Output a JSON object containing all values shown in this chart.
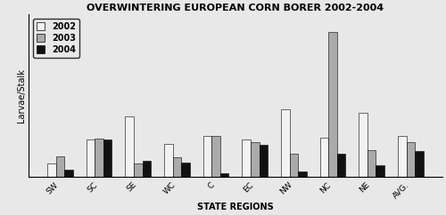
{
  "title": "OVERWINTERING EUROPEAN CORN BORER 2002-2004",
  "xlabel": "STATE REGIONS",
  "ylabel": "Larvae/Stalk",
  "categories": [
    "SW",
    "SC",
    "SE",
    "WC",
    "C",
    "EC",
    "NW",
    "NC",
    "NE",
    "AVG."
  ],
  "series": {
    "2002": [
      0.18,
      0.52,
      0.85,
      0.46,
      0.58,
      0.52,
      0.95,
      0.55,
      0.9,
      0.58
    ],
    "2003": [
      0.28,
      0.54,
      0.18,
      0.27,
      0.57,
      0.49,
      0.32,
      2.05,
      0.37,
      0.49
    ],
    "2004": [
      0.09,
      0.52,
      0.22,
      0.2,
      0.04,
      0.45,
      0.07,
      0.32,
      0.16,
      0.36
    ]
  },
  "colors": {
    "2002": "#f2f2f2",
    "2003": "#aaaaaa",
    "2004": "#111111"
  },
  "legend_labels": [
    "2002",
    "2003",
    "2004"
  ],
  "ylim": [
    0,
    2.3
  ],
  "bar_width": 0.22,
  "title_fontsize": 8,
  "axis_label_fontsize": 7,
  "tick_fontsize": 6.5,
  "legend_fontsize": 7,
  "bg_color": "#e8e8e8"
}
